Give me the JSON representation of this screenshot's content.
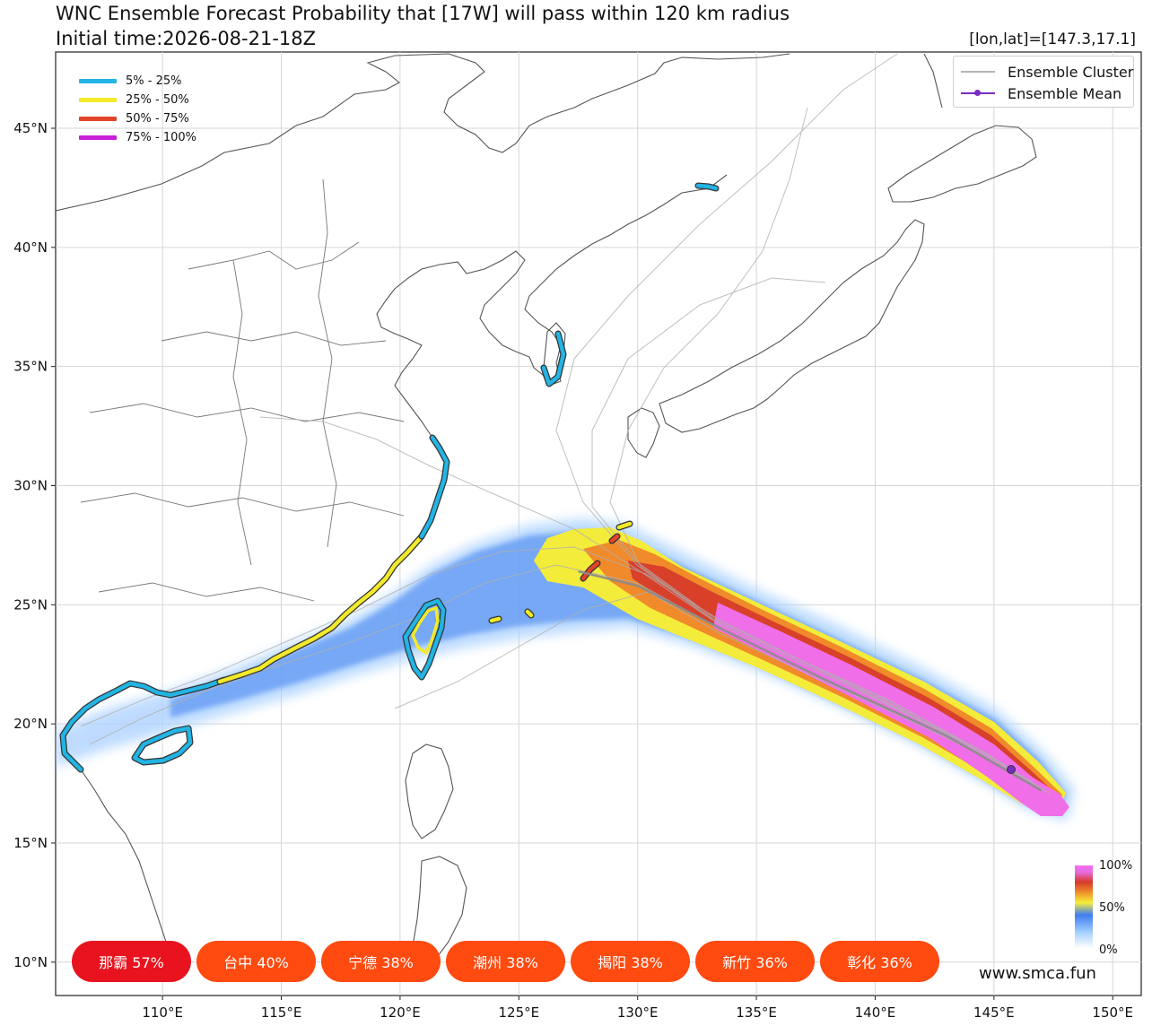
{
  "header": {
    "title": "WNC Ensemble Forecast Probability that [17W] will pass within 120 km radius",
    "subtitle": "Initial time:2026-08-21-18Z",
    "coordinates": "[lon,lat]=[147.3,17.1]"
  },
  "map": {
    "lon_range": [
      105.5,
      151.2
    ],
    "lat_range": [
      8.6,
      48.2
    ],
    "lon_ticks": [
      "110°E",
      "115°E",
      "120°E",
      "125°E",
      "130°E",
      "135°E",
      "140°E",
      "145°E",
      "150°E"
    ],
    "lat_ticks": [
      "45°N",
      "40°N",
      "35°N",
      "30°N",
      "25°N",
      "20°N",
      "15°N",
      "10°N"
    ],
    "storm_position": {
      "lon": 147.3,
      "lat": 17.1
    },
    "ensemble_mean_track": [
      [
        147.0,
        17.2
      ],
      [
        143.0,
        19.5
      ],
      [
        138.0,
        21.8
      ],
      [
        133.5,
        24.0
      ],
      [
        130.0,
        25.8
      ],
      [
        127.5,
        26.4
      ]
    ],
    "colors": {
      "land_border": "#555555",
      "grid": "#d6d6d6",
      "cluster": "#b5b5b5",
      "mean": "#7a2cc2"
    }
  },
  "prob_legend": [
    {
      "label": "5% - 25%",
      "color": "#22b4e3"
    },
    {
      "label": "25% - 50%",
      "color": "#f2ea2a"
    },
    {
      "label": "50% - 75%",
      "color": "#e2442a"
    },
    {
      "label": "75% - 100%",
      "color": "#c81ed8"
    }
  ],
  "track_legend": {
    "cluster": "Ensemble Cluster",
    "mean": "Ensemble Mean"
  },
  "colorbar": {
    "top": "100%",
    "mid": "50%",
    "bottom": "0%"
  },
  "cities": [
    {
      "label": "那霸 57%",
      "color": "#e8131e"
    },
    {
      "label": "台中 40%",
      "color": "#ff4a10"
    },
    {
      "label": "宁德 38%",
      "color": "#ff4a10"
    },
    {
      "label": "潮州 38%",
      "color": "#ff4a10"
    },
    {
      "label": "揭阳 38%",
      "color": "#ff4a10"
    },
    {
      "label": "新竹 36%",
      "color": "#ff4a10"
    },
    {
      "label": "彰化 36%",
      "color": "#ff4a10"
    }
  ],
  "footer": {
    "site": "www.smca.fun"
  }
}
